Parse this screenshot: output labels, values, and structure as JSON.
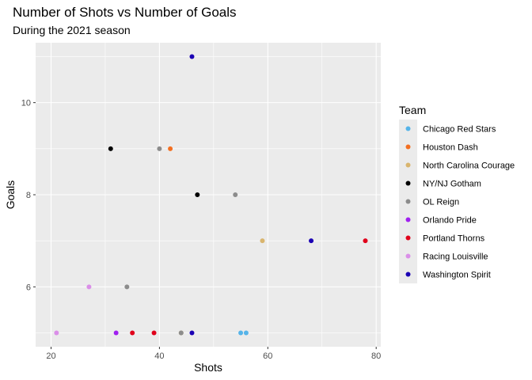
{
  "chart_data": {
    "type": "scatter",
    "title": "Number of Shots vs Number of Goals",
    "subtitle": "During the 2021 season",
    "xlabel": "Shots",
    "ylabel": "Goals",
    "xlim": [
      20,
      80
    ],
    "ylim": [
      5,
      11
    ],
    "x_ticks": [
      20,
      40,
      60,
      80
    ],
    "y_ticks": [
      6,
      8,
      10
    ],
    "grid": true,
    "legend": {
      "title": "Team",
      "position": "right"
    },
    "series": [
      {
        "name": "Chicago Red Stars",
        "color": "#56B4E9",
        "points": [
          [
            55,
            5
          ],
          [
            56,
            5
          ]
        ]
      },
      {
        "name": "Houston Dash",
        "color": "#F36F21",
        "points": [
          [
            42,
            9
          ]
        ]
      },
      {
        "name": "North Carolina Courage",
        "color": "#D9B56E",
        "points": [
          [
            59,
            7
          ],
          [
            44,
            5
          ]
        ]
      },
      {
        "name": "NY/NJ Gotham",
        "color": "#000000",
        "points": [
          [
            31,
            9
          ],
          [
            47,
            8
          ]
        ]
      },
      {
        "name": "OL Reign",
        "color": "#8C8C8C",
        "points": [
          [
            40,
            9
          ],
          [
            54,
            8
          ],
          [
            34,
            6
          ],
          [
            44,
            5
          ]
        ]
      },
      {
        "name": "Orlando Pride",
        "color": "#A020F0",
        "points": [
          [
            32,
            5
          ]
        ]
      },
      {
        "name": "Portland Thorns",
        "color": "#E0001B",
        "points": [
          [
            78,
            7
          ],
          [
            35,
            5
          ],
          [
            39,
            5
          ]
        ]
      },
      {
        "name": "Racing Louisville",
        "color": "#DA8FE8",
        "points": [
          [
            27,
            6
          ],
          [
            21,
            5
          ]
        ]
      },
      {
        "name": "Washington Spirit",
        "color": "#1B00B4",
        "points": [
          [
            46,
            11
          ],
          [
            68,
            7
          ],
          [
            46,
            5
          ]
        ]
      }
    ]
  }
}
